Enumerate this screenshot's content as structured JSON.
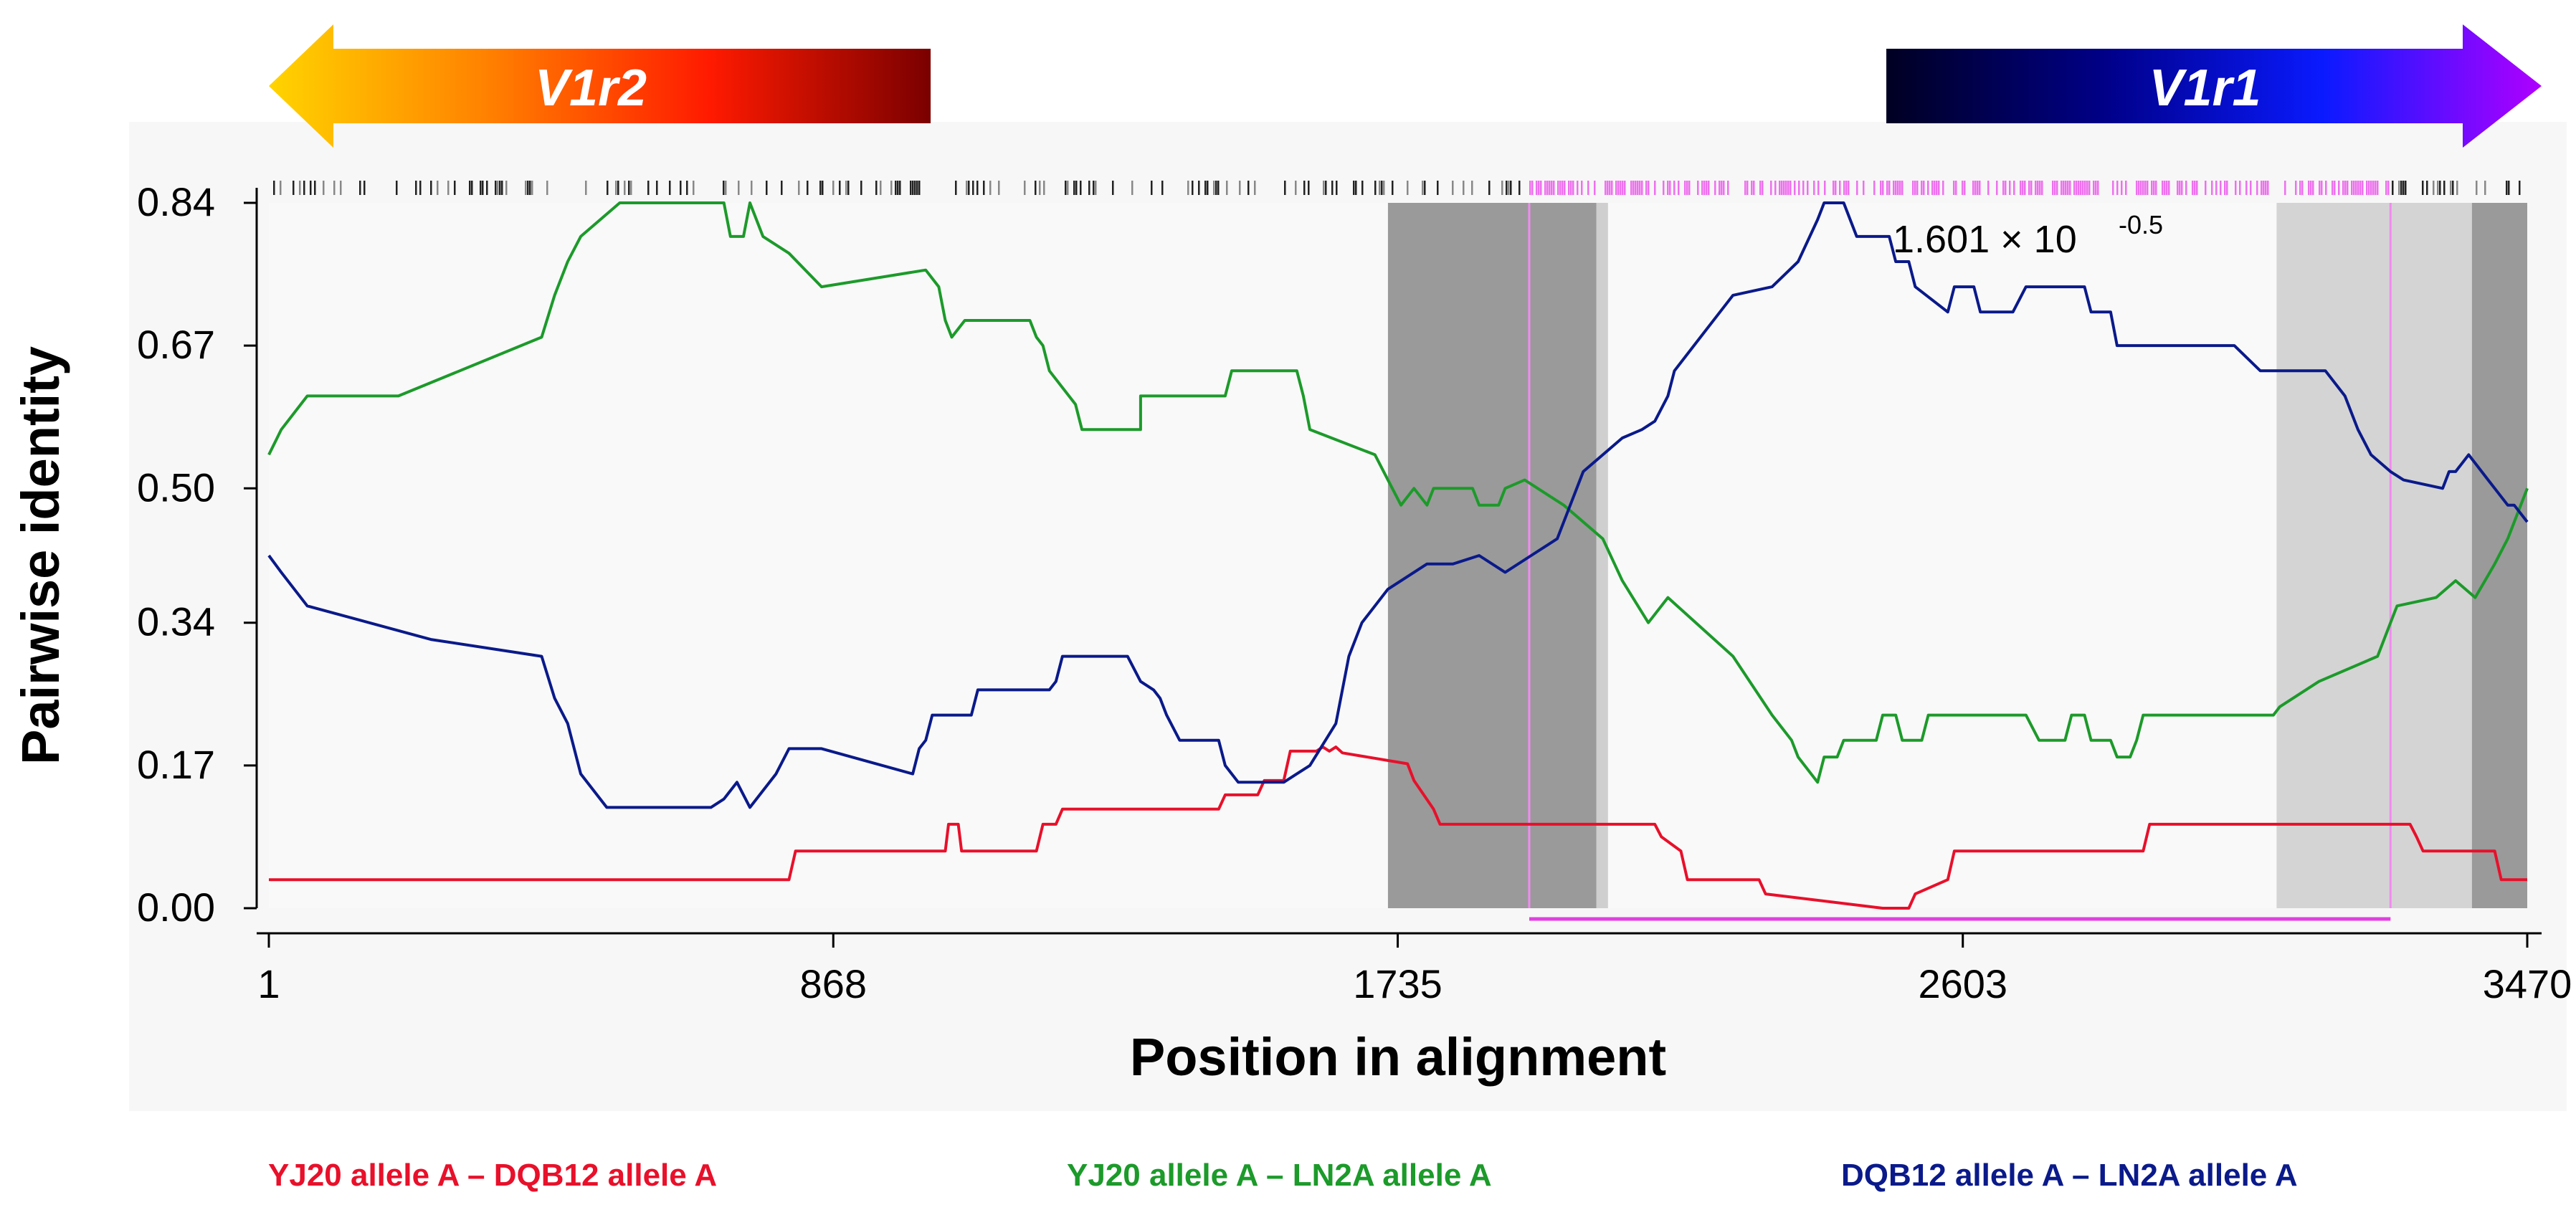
{
  "chart_data": {
    "type": "line",
    "xlabel": "Position in alignment",
    "ylabel": "Pairwise identity",
    "xlim": [
      1,
      3470
    ],
    "ylim": [
      0,
      0.84
    ],
    "xticks": [
      1,
      868,
      1735,
      2603,
      3470
    ],
    "yticks": [
      "0.00",
      "0.17",
      "0.34",
      "0.50",
      "0.67",
      "0.84"
    ],
    "annotation": "1.601 × 10",
    "annotation_exponent": "-0.5",
    "genes": [
      {
        "name": "V1r2",
        "direction": "left",
        "start": 1,
        "end": 990,
        "colors": [
          "#ffd400",
          "#ff8000",
          "#ff1a00",
          "#7a0000"
        ]
      },
      {
        "name": "V1r1",
        "direction": "right",
        "start": 2480,
        "end": 3470,
        "colors": [
          "#000022",
          "#000088",
          "#0a1aff",
          "#b000ff"
        ]
      }
    ],
    "shaded_regions": [
      {
        "start": 1720,
        "end": 2040,
        "color": "#9a9a9a"
      },
      {
        "start": 2040,
        "end": 2058,
        "color": "#cfcfcf"
      },
      {
        "start": 3085,
        "end": 3385,
        "color": "#d4d4d4"
      },
      {
        "start": 3385,
        "end": 3470,
        "color": "#9a9a9a"
      }
    ],
    "vertical_markers": [
      1937,
      3260
    ],
    "breakpoint_bar": {
      "start": 1937,
      "end": 3260,
      "color": "#e040e0"
    },
    "series": [
      {
        "name": "YJ20 allele A – DQB12 allele A",
        "color": "#e8102a",
        "x": [
          1,
          800,
          810,
          1040,
          1045,
          1060,
          1065,
          1180,
          1190,
          1210,
          1220,
          1460,
          1470,
          1520,
          1530,
          1530,
          1540,
          1560,
          1570,
          1610,
          1620,
          1620,
          1630,
          1640,
          1650,
          1750,
          1760,
          1790,
          1800,
          2130,
          2140,
          2170,
          2180,
          2290,
          2300,
          2480,
          2490,
          2520,
          2530,
          2580,
          2590,
          2880,
          2890,
          3290,
          3300,
          3300,
          3310,
          3420,
          3430,
          3470
        ],
        "y": [
          0.034,
          0.034,
          0.068,
          0.068,
          0.1,
          0.1,
          0.068,
          0.068,
          0.1,
          0.1,
          0.118,
          0.118,
          0.135,
          0.135,
          0.152,
          0.152,
          0.152,
          0.152,
          0.187,
          0.187,
          0.192,
          0.192,
          0.187,
          0.192,
          0.185,
          0.172,
          0.152,
          0.118,
          0.1,
          0.1,
          0.085,
          0.068,
          0.034,
          0.034,
          0.017,
          0.0,
          0.0,
          0.0,
          0.017,
          0.034,
          0.068,
          0.068,
          0.1,
          0.1,
          0.085,
          0.085,
          0.068,
          0.068,
          0.034,
          0.034
        ]
      },
      {
        "name": "YJ20 allele A – LN2A allele A",
        "color": "#1c9a2a",
        "x": [
          1,
          20,
          60,
          200,
          420,
          440,
          460,
          480,
          540,
          560,
          600,
          700,
          710,
          720,
          730,
          740,
          760,
          800,
          850,
          1010,
          1030,
          1040,
          1050,
          1070,
          1170,
          1180,
          1190,
          1200,
          1240,
          1250,
          1330,
          1340,
          1340,
          1470,
          1480,
          1580,
          1590,
          1600,
          1700,
          1720,
          1740,
          1760,
          1780,
          1790,
          1850,
          1860,
          1890,
          1900,
          1930,
          1950,
          1990,
          2050,
          2080,
          2120,
          2150,
          2250,
          2310,
          2340,
          2350,
          2380,
          2390,
          2410,
          2420,
          2470,
          2480,
          2500,
          2510,
          2540,
          2550,
          2700,
          2720,
          2760,
          2770,
          2790,
          2800,
          2830,
          2840,
          2860,
          2870,
          2880,
          3080,
          3090,
          3150,
          3240,
          3260,
          3270,
          3330,
          3360,
          3390,
          3420,
          3440,
          3470
        ],
        "y": [
          0.54,
          0.57,
          0.61,
          0.61,
          0.68,
          0.73,
          0.77,
          0.8,
          0.84,
          0.84,
          0.84,
          0.84,
          0.8,
          0.8,
          0.8,
          0.84,
          0.8,
          0.78,
          0.74,
          0.76,
          0.74,
          0.7,
          0.68,
          0.7,
          0.7,
          0.68,
          0.67,
          0.64,
          0.6,
          0.57,
          0.57,
          0.57,
          0.61,
          0.61,
          0.64,
          0.64,
          0.61,
          0.57,
          0.54,
          0.51,
          0.48,
          0.5,
          0.48,
          0.5,
          0.5,
          0.48,
          0.48,
          0.5,
          0.51,
          0.5,
          0.48,
          0.44,
          0.39,
          0.34,
          0.37,
          0.3,
          0.23,
          0.2,
          0.18,
          0.15,
          0.18,
          0.18,
          0.2,
          0.2,
          0.23,
          0.23,
          0.2,
          0.2,
          0.23,
          0.23,
          0.2,
          0.2,
          0.23,
          0.23,
          0.2,
          0.2,
          0.18,
          0.18,
          0.2,
          0.23,
          0.23,
          0.24,
          0.27,
          0.3,
          0.34,
          0.36,
          0.37,
          0.39,
          0.37,
          0.41,
          0.44,
          0.5
        ]
      },
      {
        "name": "DQB12 allele A – LN2A allele A",
        "color": "#0a1a8a",
        "x": [
          1,
          20,
          60,
          250,
          420,
          440,
          460,
          480,
          520,
          580,
          680,
          700,
          720,
          740,
          780,
          800,
          850,
          990,
          1000,
          1010,
          1020,
          1060,
          1080,
          1090,
          1200,
          1210,
          1220,
          1320,
          1340,
          1360,
          1370,
          1380,
          1400,
          1460,
          1470,
          1490,
          1560,
          1580,
          1600,
          1640,
          1660,
          1680,
          1720,
          1780,
          1820,
          1860,
          1900,
          1940,
          1980,
          2000,
          2020,
          2080,
          2110,
          2130,
          2150,
          2160,
          2200,
          2230,
          2250,
          2310,
          2350,
          2380,
          2390,
          2400,
          2420,
          2440,
          2460,
          2480,
          2490,
          2500,
          2520,
          2530,
          2580,
          2590,
          2620,
          2630,
          2680,
          2700,
          2720,
          2790,
          2800,
          2830,
          2840,
          3020,
          3060,
          3110,
          3160,
          3190,
          3210,
          3230,
          3260,
          3280,
          3340,
          3350,
          3360,
          3380,
          3410,
          3420,
          3440,
          3450,
          3470
        ],
        "y": [
          0.42,
          0.4,
          0.36,
          0.32,
          0.3,
          0.25,
          0.22,
          0.16,
          0.12,
          0.12,
          0.12,
          0.13,
          0.15,
          0.12,
          0.16,
          0.19,
          0.19,
          0.16,
          0.19,
          0.2,
          0.23,
          0.23,
          0.23,
          0.26,
          0.26,
          0.27,
          0.3,
          0.3,
          0.27,
          0.26,
          0.25,
          0.23,
          0.2,
          0.2,
          0.17,
          0.15,
          0.15,
          0.16,
          0.17,
          0.22,
          0.3,
          0.34,
          0.38,
          0.41,
          0.41,
          0.42,
          0.4,
          0.42,
          0.44,
          0.48,
          0.52,
          0.56,
          0.57,
          0.58,
          0.61,
          0.64,
          0.68,
          0.71,
          0.73,
          0.74,
          0.77,
          0.82,
          0.84,
          0.84,
          0.84,
          0.8,
          0.8,
          0.8,
          0.8,
          0.77,
          0.77,
          0.74,
          0.71,
          0.74,
          0.74,
          0.71,
          0.71,
          0.74,
          0.74,
          0.74,
          0.71,
          0.71,
          0.67,
          0.67,
          0.64,
          0.64,
          0.64,
          0.61,
          0.57,
          0.54,
          0.52,
          0.51,
          0.5,
          0.52,
          0.52,
          0.54,
          0.51,
          0.5,
          0.48,
          0.48,
          0.46
        ]
      }
    ]
  }
}
